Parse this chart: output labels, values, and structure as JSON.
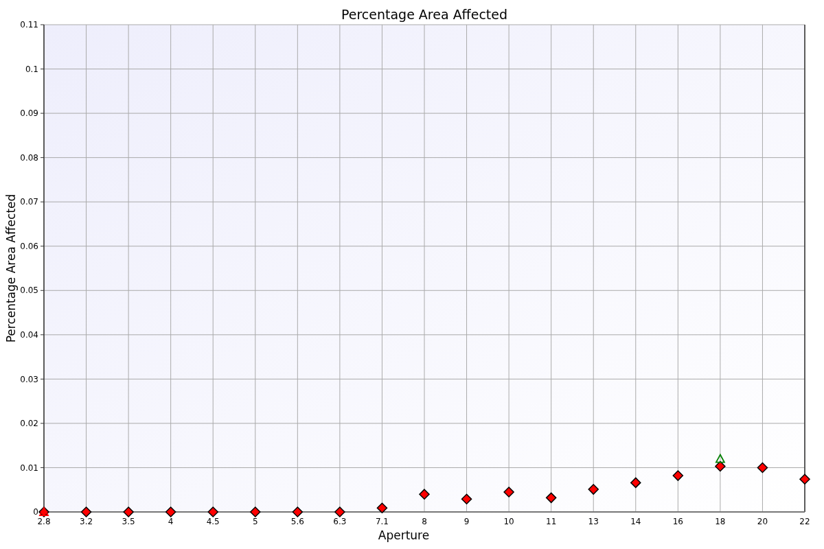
{
  "chart_data": {
    "type": "scatter",
    "title": "Percentage Area Affected",
    "xlabel": "Aperture",
    "ylabel": "Percentage Area Affected",
    "categories": [
      "2.8",
      "3.2",
      "3.5",
      "4",
      "4.5",
      "5",
      "5.6",
      "6.3",
      "7.1",
      "8",
      "9",
      "10",
      "11",
      "13",
      "14",
      "16",
      "18",
      "20",
      "22"
    ],
    "series": [
      {
        "color": "#ff0000",
        "marker": "diamond",
        "values": [
          0,
          0,
          0,
          0,
          0,
          0,
          0,
          0,
          0.0009,
          0.004,
          0.0029,
          0.0045,
          0.0032,
          0.0051,
          0.0066,
          0.0082,
          0.0103,
          0.01,
          0.0074
        ]
      },
      {
        "color": "#ff0000",
        "marker": "triangle",
        "values": [
          0,
          null,
          null,
          null,
          null,
          null,
          null,
          null,
          null,
          null,
          null,
          null,
          null,
          null,
          null,
          null,
          null,
          null,
          null
        ]
      },
      {
        "color": "#008000",
        "marker": "triangle",
        "values": [
          null,
          null,
          null,
          null,
          null,
          null,
          null,
          null,
          null,
          null,
          null,
          null,
          null,
          null,
          null,
          null,
          0.012,
          null,
          null
        ]
      }
    ],
    "ylim": [
      0,
      0.11
    ],
    "yticks": [
      0,
      0.01,
      0.02,
      0.03,
      0.04,
      0.05,
      0.06,
      0.07,
      0.08,
      0.09,
      0.1,
      0.11
    ],
    "grid": true
  }
}
